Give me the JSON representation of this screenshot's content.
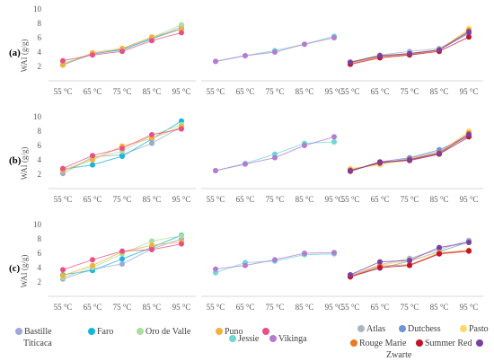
{
  "row_labels": [
    "(a)",
    "(b)",
    "(c)"
  ],
  "legends": [
    [
      {
        "name": "Bastille",
        "color": "#9ea9d8"
      },
      {
        "name": "Faro",
        "color": "#14b6e0"
      },
      {
        "name": "Oro de Valle",
        "color": "#a9dea0"
      },
      {
        "name": "Puno",
        "color": "#f4b03c"
      },
      {
        "name": "Titicaca",
        "color": "#e94f86"
      }
    ],
    [
      {
        "name": "Jessie",
        "color": "#6ad8d3"
      },
      {
        "name": "Vikinga",
        "color": "#b57bd3"
      }
    ],
    [
      {
        "name": "Atlas",
        "color": "#aab6c8"
      },
      {
        "name": "Dutchess",
        "color": "#6e93d8"
      },
      {
        "name": "Pasto",
        "color": "#fbd86c"
      },
      {
        "name": "Rouge Marie",
        "color": "#ea7b1e"
      },
      {
        "name": "Summer Red",
        "color": "#c4122c"
      },
      {
        "name": "Zwarte",
        "color": "#7b3f9e"
      }
    ]
  ],
  "chart_data": [
    {
      "panel": "a1",
      "type": "line",
      "ylabel": "WAI (g/g)",
      "ylim": [
        0,
        10
      ],
      "yticks": [
        2,
        4,
        6,
        8,
        10
      ],
      "categories": [
        "55 °C",
        "65 °C",
        "75 °C",
        "85 °C",
        "95 °C"
      ],
      "series": [
        {
          "name": "Bastille",
          "values": [
            2.3,
            3.7,
            4.4,
            5.8,
            7.5
          ]
        },
        {
          "name": "Faro",
          "values": [
            2.2,
            3.8,
            4.3,
            5.9,
            7.2
          ]
        },
        {
          "name": "Oro de Valle",
          "values": [
            2.4,
            3.8,
            4.5,
            6.0,
            7.8
          ]
        },
        {
          "name": "Puno",
          "values": [
            2.2,
            3.9,
            4.5,
            6.1,
            7.2
          ]
        },
        {
          "name": "Titicaca",
          "values": [
            2.8,
            3.6,
            4.1,
            5.6,
            6.7
          ]
        }
      ]
    },
    {
      "panel": "a2",
      "type": "line",
      "ylim": [
        0,
        10
      ],
      "categories": [
        "55 °C",
        "65 °C",
        "75 °C",
        "85 °C",
        "95 °C"
      ],
      "series": [
        {
          "name": "Jessie",
          "values": [
            2.7,
            3.5,
            4.2,
            5.1,
            6.2
          ]
        },
        {
          "name": "Vikinga",
          "values": [
            2.7,
            3.5,
            4.0,
            5.1,
            6.0
          ]
        }
      ]
    },
    {
      "panel": "a3",
      "type": "line",
      "ylim": [
        0,
        10
      ],
      "categories": [
        "55 °C",
        "65 °C",
        "75 °C",
        "85 °C",
        "95 °C"
      ],
      "series": [
        {
          "name": "Atlas",
          "values": [
            2.6,
            3.6,
            4.1,
            4.5,
            6.8
          ]
        },
        {
          "name": "Dutchess",
          "values": [
            2.5,
            3.4,
            3.8,
            4.3,
            6.6
          ]
        },
        {
          "name": "Pasto",
          "values": [
            2.4,
            3.3,
            3.6,
            4.2,
            7.3
          ]
        },
        {
          "name": "Rouge Marie",
          "values": [
            2.5,
            3.4,
            3.7,
            4.3,
            7.0
          ]
        },
        {
          "name": "Summer Red",
          "values": [
            2.3,
            3.2,
            3.6,
            4.1,
            6.1
          ]
        },
        {
          "name": "Zwarte",
          "values": [
            2.6,
            3.5,
            3.8,
            4.3,
            6.8
          ]
        }
      ]
    },
    {
      "panel": "b1",
      "type": "line",
      "ylabel": "WAI (g/g)",
      "ylim": [
        0,
        10
      ],
      "yticks": [
        2,
        4,
        6,
        8,
        10
      ],
      "categories": [
        "55 °C",
        "65 °C",
        "75 °C",
        "85 °C",
        "95 °C"
      ],
      "series": [
        {
          "name": "Bastille",
          "values": [
            2.1,
            4.4,
            4.7,
            6.3,
            8.6
          ]
        },
        {
          "name": "Faro",
          "values": [
            2.7,
            3.3,
            4.5,
            6.9,
            9.4
          ]
        },
        {
          "name": "Oro de Valle",
          "values": [
            2.5,
            4.2,
            5.2,
            7.4,
            8.9
          ]
        },
        {
          "name": "Puno",
          "values": [
            2.5,
            4.0,
            5.9,
            7.0,
            8.6
          ]
        },
        {
          "name": "Titicaca",
          "values": [
            2.8,
            4.6,
            5.6,
            7.5,
            8.3
          ]
        }
      ]
    },
    {
      "panel": "b2",
      "type": "line",
      "ylim": [
        0,
        10
      ],
      "categories": [
        "55 °C",
        "65 °C",
        "75 °C",
        "85 °C",
        "95 °C"
      ],
      "series": [
        {
          "name": "Jessie",
          "values": [
            2.5,
            3.5,
            4.8,
            6.3,
            6.5
          ]
        },
        {
          "name": "Vikinga",
          "values": [
            2.5,
            3.4,
            4.3,
            6.0,
            7.2
          ]
        }
      ]
    },
    {
      "panel": "b3",
      "type": "line",
      "ylim": [
        0,
        10
      ],
      "categories": [
        "55 °C",
        "65 °C",
        "75 °C",
        "85 °C",
        "95 °C"
      ],
      "series": [
        {
          "name": "Atlas",
          "values": [
            2.6,
            3.5,
            4.2,
            5.2,
            7.6
          ]
        },
        {
          "name": "Dutchess",
          "values": [
            2.5,
            3.7,
            4.3,
            5.4,
            7.3
          ]
        },
        {
          "name": "Pasto",
          "values": [
            2.8,
            3.3,
            4.0,
            5.0,
            8.0
          ]
        },
        {
          "name": "Rouge Marie",
          "values": [
            2.6,
            3.5,
            4.1,
            5.0,
            7.7
          ]
        },
        {
          "name": "Summer Red",
          "values": [
            2.4,
            3.7,
            3.9,
            4.8,
            7.2
          ]
        },
        {
          "name": "Zwarte",
          "values": [
            2.5,
            3.6,
            4.0,
            4.9,
            7.5
          ]
        }
      ]
    },
    {
      "panel": "c1",
      "type": "line",
      "ylabel": "WAI (g/g)",
      "ylim": [
        0,
        10
      ],
      "yticks": [
        2,
        4,
        6,
        8,
        10
      ],
      "categories": [
        "55 °C",
        "65 °C",
        "75 °C",
        "85 °C",
        "95 °C"
      ],
      "series": [
        {
          "name": "Bastille",
          "values": [
            2.4,
            3.8,
            4.5,
            6.6,
            8.0
          ]
        },
        {
          "name": "Faro",
          "values": [
            3.0,
            3.6,
            5.2,
            6.8,
            8.5
          ]
        },
        {
          "name": "Oro de Valle",
          "values": [
            2.6,
            4.0,
            5.9,
            7.7,
            8.4
          ]
        },
        {
          "name": "Puno",
          "values": [
            2.9,
            4.3,
            6.2,
            7.1,
            7.6
          ]
        },
        {
          "name": "Titicaca",
          "values": [
            3.7,
            5.1,
            6.3,
            6.5,
            7.3
          ]
        }
      ]
    },
    {
      "panel": "c2",
      "type": "line",
      "ylim": [
        0,
        10
      ],
      "categories": [
        "55 °C",
        "65 °C",
        "75 °C",
        "85 °C",
        "95 °C"
      ],
      "series": [
        {
          "name": "Jessie",
          "values": [
            3.3,
            4.7,
            4.9,
            5.8,
            5.9
          ]
        },
        {
          "name": "Vikinga",
          "values": [
            3.8,
            4.3,
            5.1,
            6.0,
            6.1
          ]
        }
      ]
    },
    {
      "panel": "c3",
      "type": "line",
      "ylim": [
        0,
        10
      ],
      "categories": [
        "55 °C",
        "65 °C",
        "75 °C",
        "85 °C",
        "95 °C"
      ],
      "series": [
        {
          "name": "Atlas",
          "values": [
            2.9,
            4.4,
            5.3,
            6.5,
            7.8
          ]
        },
        {
          "name": "Dutchess",
          "values": [
            2.8,
            3.9,
            4.9,
            6.2,
            7.6
          ]
        },
        {
          "name": "Pasto",
          "values": [
            2.7,
            4.3,
            5.0,
            6.1,
            6.3
          ]
        },
        {
          "name": "Rouge Marie",
          "values": [
            2.8,
            4.2,
            4.4,
            6.0,
            6.4
          ]
        },
        {
          "name": "Summer Red",
          "values": [
            2.7,
            4.0,
            4.3,
            5.9,
            6.3
          ]
        },
        {
          "name": "Zwarte",
          "values": [
            3.0,
            4.8,
            5.0,
            6.8,
            7.5
          ]
        }
      ]
    }
  ]
}
